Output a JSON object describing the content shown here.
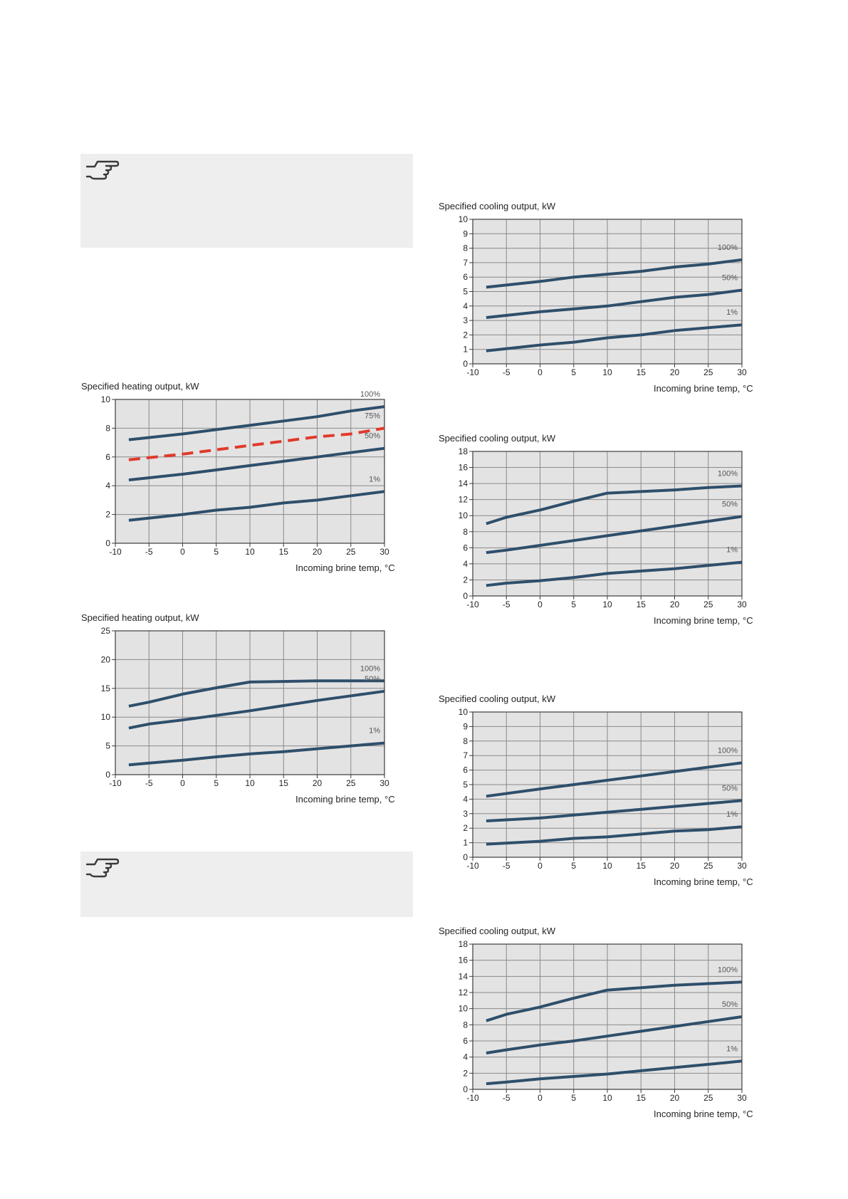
{
  "notes": [
    {
      "icon": "pointing-hand-icon"
    },
    {
      "icon": "pointing-hand-icon"
    }
  ],
  "colors": {
    "plot_background": "#e4e3e3",
    "grid": "#8a8a8a",
    "frame": "#3c3c3c",
    "series_line": "#2e4f6b",
    "series_line_dashed": "#e03a2c",
    "percent_label": "#555555",
    "note_background": "#eeeeee"
  },
  "chart_data": [
    {
      "type": "line",
      "title": "Specified heating output, kW",
      "xlabel": "Incoming brine temp, °C",
      "ylabel": "",
      "xlim": [
        -10,
        30
      ],
      "ylim": [
        0,
        10
      ],
      "xticks": [
        "-10",
        "-5",
        "0",
        "5",
        "10",
        "15",
        "20",
        "25",
        "30"
      ],
      "yticks": [
        "0",
        "2",
        "4",
        "6",
        "8",
        "10"
      ],
      "grid": true,
      "series": [
        {
          "name": "100%",
          "dashed": false,
          "x": [
            -8,
            0,
            5,
            10,
            15,
            20,
            25,
            30
          ],
          "y": [
            7.2,
            7.6,
            7.9,
            8.2,
            8.5,
            8.8,
            9.2,
            9.5
          ]
        },
        {
          "name": "75%",
          "dashed": true,
          "x": [
            -8,
            0,
            5,
            10,
            15,
            20,
            25,
            30
          ],
          "y": [
            5.8,
            6.2,
            6.5,
            6.8,
            7.1,
            7.4,
            7.6,
            8.0
          ]
        },
        {
          "name": "50%",
          "dashed": false,
          "x": [
            -8,
            0,
            5,
            10,
            15,
            20,
            25,
            30
          ],
          "y": [
            4.4,
            4.8,
            5.1,
            5.4,
            5.7,
            6.0,
            6.3,
            6.6
          ]
        },
        {
          "name": "1%",
          "dashed": false,
          "x": [
            -8,
            0,
            5,
            10,
            15,
            20,
            25,
            30
          ],
          "y": [
            1.6,
            2.0,
            2.3,
            2.5,
            2.8,
            3.0,
            3.3,
            3.6
          ]
        }
      ]
    },
    {
      "type": "line",
      "title": "Specified heating output, kW",
      "xlabel": "Incoming brine temp, °C",
      "ylabel": "",
      "xlim": [
        -10,
        30
      ],
      "ylim": [
        0,
        25
      ],
      "xticks": [
        "-10",
        "-5",
        "0",
        "5",
        "10",
        "15",
        "20",
        "25",
        "30"
      ],
      "yticks": [
        "0",
        "5",
        "10",
        "15",
        "20",
        "25"
      ],
      "grid": true,
      "series": [
        {
          "name": "100%",
          "dashed": false,
          "x": [
            -8,
            -5,
            0,
            5,
            10,
            15,
            20,
            25,
            30
          ],
          "y": [
            11.9,
            12.6,
            14.0,
            15.1,
            16.1,
            16.2,
            16.3,
            16.3,
            16.3
          ]
        },
        {
          "name": "50%",
          "dashed": false,
          "x": [
            -8,
            -5,
            0,
            5,
            10,
            15,
            20,
            25,
            30
          ],
          "y": [
            8.1,
            8.8,
            9.5,
            10.3,
            11.1,
            12.0,
            12.9,
            13.7,
            14.5
          ]
        },
        {
          "name": "1%",
          "dashed": false,
          "x": [
            -8,
            -5,
            0,
            5,
            10,
            15,
            20,
            25,
            30
          ],
          "y": [
            1.7,
            2.0,
            2.5,
            3.1,
            3.6,
            4.0,
            4.5,
            5.0,
            5.5
          ]
        }
      ]
    },
    {
      "type": "line",
      "title": "Specified cooling output, kW",
      "xlabel": "Incoming brine temp, °C",
      "ylabel": "",
      "xlim": [
        -10,
        30
      ],
      "ylim": [
        0,
        10
      ],
      "xticks": [
        "-10",
        "-5",
        "0",
        "5",
        "10",
        "15",
        "20",
        "25",
        "30"
      ],
      "yticks": [
        "0",
        "1",
        "2",
        "3",
        "4",
        "5",
        "6",
        "7",
        "8",
        "9",
        "10"
      ],
      "grid": true,
      "series": [
        {
          "name": "100%",
          "dashed": false,
          "x": [
            -8,
            0,
            5,
            10,
            15,
            20,
            25,
            30
          ],
          "y": [
            5.3,
            5.7,
            6.0,
            6.2,
            6.4,
            6.7,
            6.9,
            7.2
          ]
        },
        {
          "name": "50%",
          "dashed": false,
          "x": [
            -8,
            0,
            5,
            10,
            15,
            20,
            25,
            30
          ],
          "y": [
            3.2,
            3.6,
            3.8,
            4.0,
            4.3,
            4.6,
            4.8,
            5.1
          ]
        },
        {
          "name": "1%",
          "dashed": false,
          "x": [
            -8,
            0,
            5,
            10,
            15,
            20,
            25,
            30
          ],
          "y": [
            0.9,
            1.3,
            1.5,
            1.8,
            2.0,
            2.3,
            2.5,
            2.7
          ]
        }
      ]
    },
    {
      "type": "line",
      "title": "Specified cooling output, kW",
      "xlabel": "Incoming brine temp, °C",
      "ylabel": "",
      "xlim": [
        -10,
        30
      ],
      "ylim": [
        0,
        18
      ],
      "xticks": [
        "-10",
        "-5",
        "0",
        "5",
        "10",
        "15",
        "20",
        "25",
        "30"
      ],
      "yticks": [
        "0",
        "2",
        "4",
        "6",
        "8",
        "10",
        "12",
        "14",
        "16",
        "18"
      ],
      "grid": true,
      "series": [
        {
          "name": "100%",
          "dashed": false,
          "x": [
            -8,
            -5,
            0,
            5,
            10,
            15,
            20,
            25,
            30
          ],
          "y": [
            9.0,
            9.8,
            10.7,
            11.8,
            12.8,
            13.0,
            13.2,
            13.5,
            13.7
          ]
        },
        {
          "name": "50%",
          "dashed": false,
          "x": [
            -8,
            -5,
            0,
            5,
            10,
            15,
            20,
            25,
            30
          ],
          "y": [
            5.4,
            5.7,
            6.3,
            6.9,
            7.5,
            8.1,
            8.7,
            9.3,
            9.9
          ]
        },
        {
          "name": "1%",
          "dashed": false,
          "x": [
            -8,
            -5,
            0,
            5,
            10,
            15,
            20,
            25,
            30
          ],
          "y": [
            1.3,
            1.6,
            1.9,
            2.3,
            2.8,
            3.1,
            3.4,
            3.8,
            4.2
          ]
        }
      ]
    },
    {
      "type": "line",
      "title": "Specified cooling output, kW",
      "xlabel": "Incoming brine temp, °C",
      "ylabel": "",
      "xlim": [
        -10,
        30
      ],
      "ylim": [
        0,
        10
      ],
      "xticks": [
        "-10",
        "-5",
        "0",
        "5",
        "10",
        "15",
        "20",
        "25",
        "30"
      ],
      "yticks": [
        "0",
        "1",
        "2",
        "3",
        "4",
        "5",
        "6",
        "7",
        "8",
        "9",
        "10"
      ],
      "grid": true,
      "series": [
        {
          "name": "100%",
          "dashed": false,
          "x": [
            -8,
            0,
            5,
            10,
            15,
            20,
            25,
            30
          ],
          "y": [
            4.2,
            4.7,
            5.0,
            5.3,
            5.6,
            5.9,
            6.2,
            6.5
          ]
        },
        {
          "name": "50%",
          "dashed": false,
          "x": [
            -8,
            0,
            5,
            10,
            15,
            20,
            25,
            30
          ],
          "y": [
            2.5,
            2.7,
            2.9,
            3.1,
            3.3,
            3.5,
            3.7,
            3.9
          ]
        },
        {
          "name": "1%",
          "dashed": false,
          "x": [
            -8,
            0,
            5,
            10,
            15,
            20,
            25,
            30
          ],
          "y": [
            0.9,
            1.1,
            1.3,
            1.4,
            1.6,
            1.8,
            1.9,
            2.1
          ]
        }
      ]
    },
    {
      "type": "line",
      "title": "Specified cooling output, kW",
      "xlabel": "Incoming brine temp, °C",
      "ylabel": "",
      "xlim": [
        -10,
        30
      ],
      "ylim": [
        0,
        18
      ],
      "xticks": [
        "-10",
        "-5",
        "0",
        "5",
        "10",
        "15",
        "20",
        "25",
        "30"
      ],
      "yticks": [
        "0",
        "2",
        "4",
        "6",
        "8",
        "10",
        "12",
        "14",
        "16",
        "18"
      ],
      "grid": true,
      "series": [
        {
          "name": "100%",
          "dashed": false,
          "x": [
            -8,
            -5,
            0,
            5,
            10,
            15,
            20,
            25,
            30
          ],
          "y": [
            8.5,
            9.3,
            10.2,
            11.3,
            12.3,
            12.6,
            12.9,
            13.1,
            13.3
          ]
        },
        {
          "name": "50%",
          "dashed": false,
          "x": [
            -8,
            -5,
            0,
            5,
            10,
            15,
            20,
            25,
            30
          ],
          "y": [
            4.5,
            4.9,
            5.5,
            6.0,
            6.6,
            7.2,
            7.8,
            8.4,
            9.0
          ]
        },
        {
          "name": "1%",
          "dashed": false,
          "x": [
            -8,
            -5,
            0,
            5,
            10,
            15,
            20,
            25,
            30
          ],
          "y": [
            0.7,
            0.9,
            1.3,
            1.6,
            1.9,
            2.3,
            2.7,
            3.1,
            3.5
          ]
        }
      ]
    }
  ]
}
